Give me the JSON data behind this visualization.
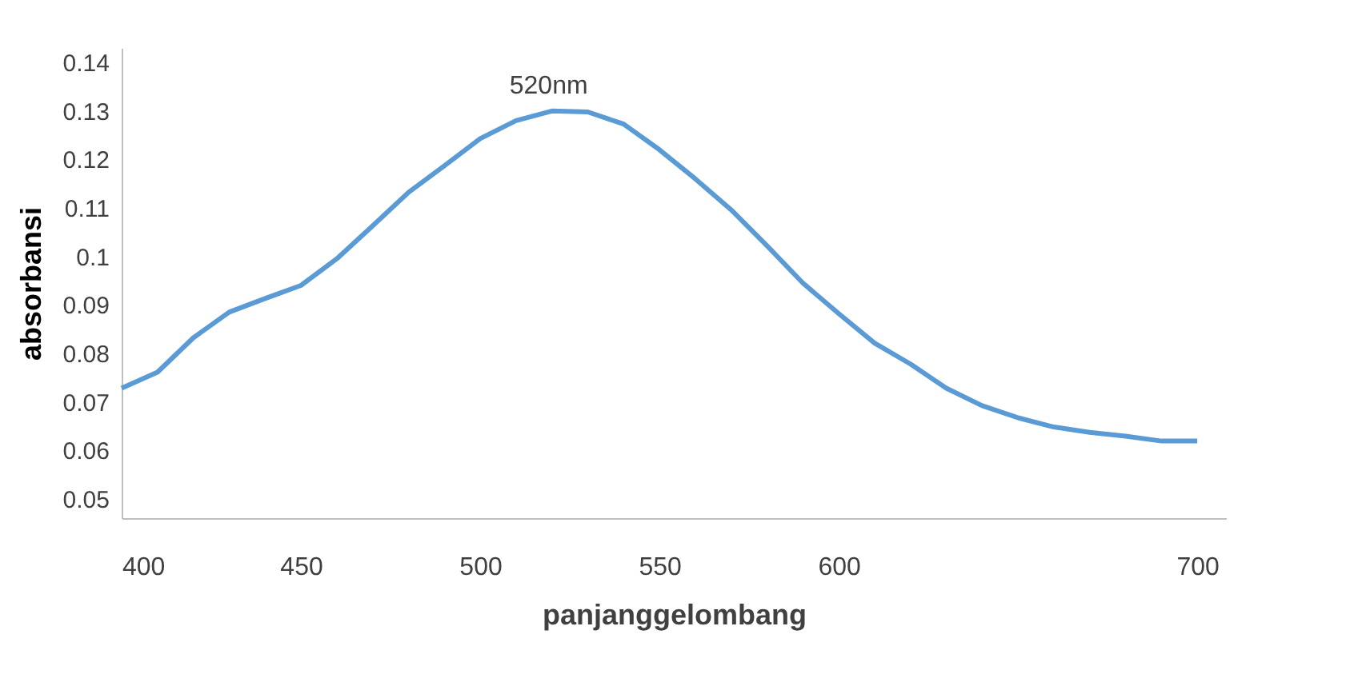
{
  "chart_data": {
    "type": "line",
    "xlabel": "panjanggelombang",
    "ylabel": "absorbansi",
    "x": [
      400,
      410,
      420,
      430,
      440,
      450,
      460,
      470,
      480,
      490,
      500,
      510,
      520,
      530,
      540,
      550,
      560,
      570,
      580,
      590,
      600,
      610,
      620,
      630,
      640,
      650,
      660,
      670,
      680,
      690,
      700
    ],
    "series": [
      {
        "color": "#5b9bd5",
        "values": [
          0.0728,
          0.0761,
          0.0832,
          0.0885,
          0.0913,
          0.094,
          0.0995,
          0.1063,
          0.1132,
          0.1187,
          0.1243,
          0.128,
          0.13,
          0.1298,
          0.1273,
          0.122,
          0.116,
          0.1096,
          0.1022,
          0.0945,
          0.0882,
          0.0821,
          0.0778,
          0.0728,
          0.0692,
          0.0667,
          0.0648,
          0.0637,
          0.0629,
          0.0619,
          0.0619
        ]
      }
    ],
    "xlim": [
      400,
      708
    ],
    "xticks": [
      400,
      450,
      500,
      550,
      600,
      700
    ],
    "ylim": [
      0.046,
      0.143
    ],
    "yticks": [
      0.05,
      0.06,
      0.07,
      0.08,
      0.09,
      0.1,
      0.11,
      0.12,
      0.13,
      0.14
    ],
    "annotations": [
      {
        "text": "520nm",
        "x": 520,
        "y": 0.13
      }
    ],
    "grid": false,
    "marker": "none",
    "line_style": "solid"
  }
}
